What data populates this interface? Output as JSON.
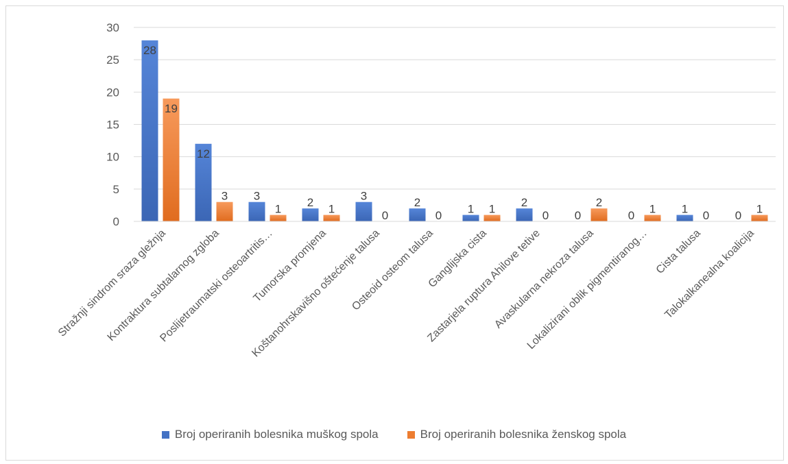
{
  "chart_data": {
    "type": "bar",
    "categories": [
      "Stražnji sindrom sraza gležnja",
      "Kontraktura subtalarnog zgloba",
      "Poslijetraumatski osteoartritis…",
      "Tumorska promjena",
      "Koštanohrskavišno oštećenje talusa",
      "Osteoid osteom talusa",
      "Ganglijska cista",
      "Zastarjela ruptura Ahilove tetive",
      "Avaskularna nekroza talusa",
      "Lokalizirani oblik pigmentiranog…",
      "Cista talusa",
      "Talokalkanealna koalicija"
    ],
    "series": [
      {
        "name": "Broj operiranih bolesnika muškog spola",
        "values": [
          28,
          12,
          3,
          2,
          3,
          2,
          1,
          2,
          0,
          0,
          1,
          0
        ],
        "color": "#4472c4"
      },
      {
        "name": "Broj operiranih bolesnika ženskog spola",
        "values": [
          19,
          3,
          1,
          1,
          0,
          0,
          1,
          0,
          2,
          1,
          0,
          1
        ],
        "color": "#ed7d31"
      }
    ],
    "y_ticks": [
      "0",
      "5",
      "10",
      "15",
      "20",
      "25",
      "30"
    ],
    "ylim": [
      0,
      30
    ],
    "grid": true,
    "legend_position": "bottom"
  }
}
